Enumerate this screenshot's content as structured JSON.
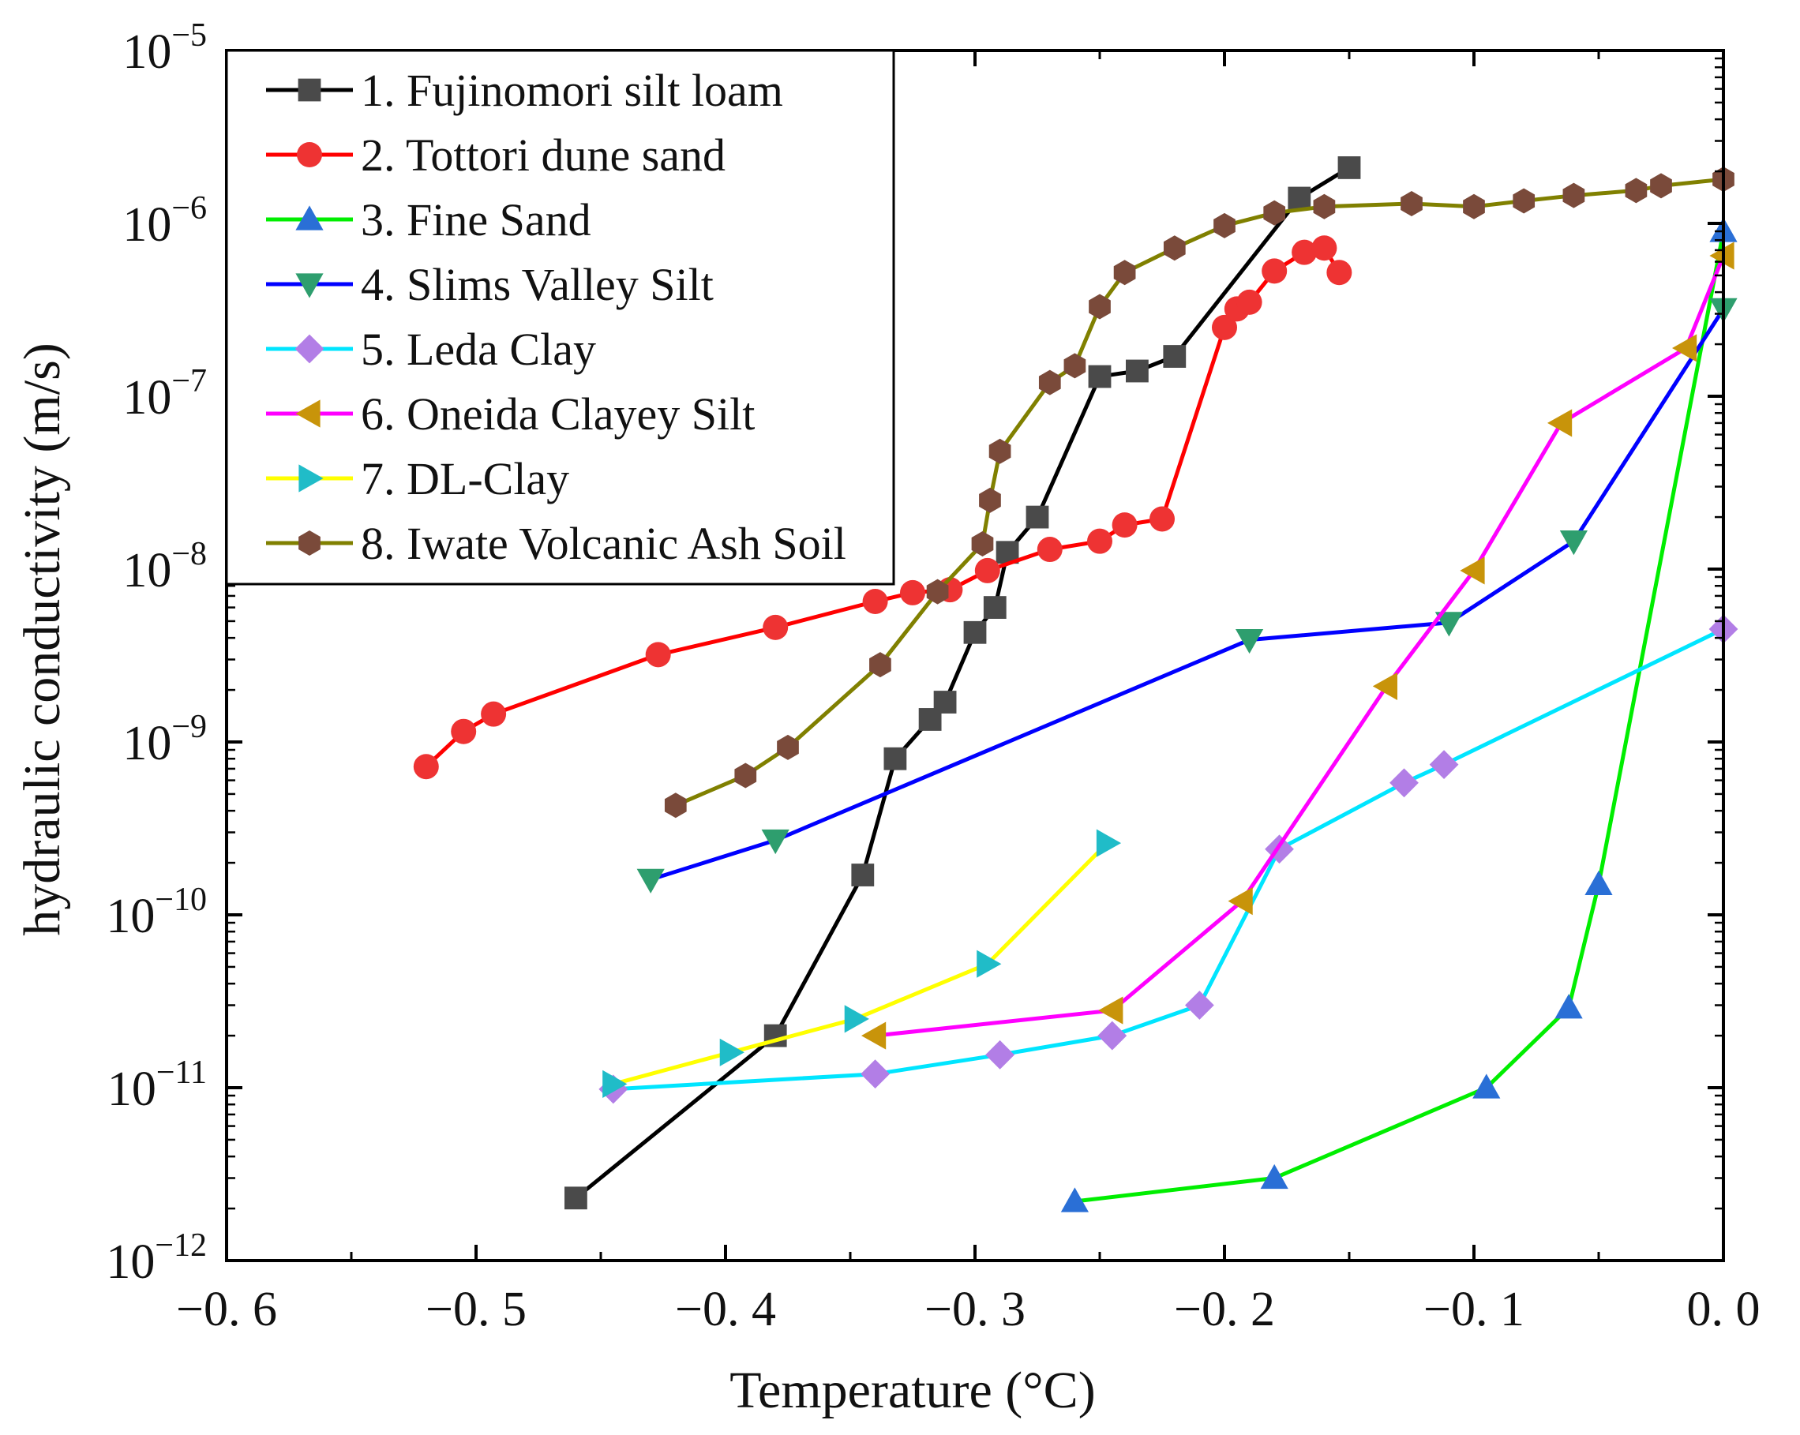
{
  "chart_data": {
    "type": "line",
    "title": "",
    "xlabel": "Temperature (°C)",
    "ylabel": "hydraulic conductivity (m/s)",
    "xlim": [
      -0.6,
      0.0
    ],
    "ylim_log10": [
      -12,
      -5
    ],
    "yscale": "log",
    "x_ticks": [
      -0.6,
      -0.5,
      -0.4,
      -0.3,
      -0.2,
      -0.1,
      0.0
    ],
    "x_tick_labels": [
      "−0. 6",
      "−0. 5",
      "−0. 4",
      "−0. 3",
      "−0. 2",
      "−0. 1",
      "0. 0"
    ],
    "y_tick_exponents": [
      -5,
      -6,
      -7,
      -8,
      -9,
      -10,
      -11,
      -12
    ],
    "y_tick_labels": [
      {
        "base": "10",
        "exp": "−5"
      },
      {
        "base": "10",
        "exp": "−6"
      },
      {
        "base": "10",
        "exp": "−7"
      },
      {
        "base": "10",
        "exp": "−8"
      },
      {
        "base": "10",
        "exp": "−9"
      },
      {
        "base": "10",
        "exp": "−10"
      },
      {
        "base": "10",
        "exp": "−11"
      },
      {
        "base": "10",
        "exp": "−12"
      }
    ],
    "legend_position": "top-left",
    "series": [
      {
        "name": "1. Fujinomori silt loam",
        "line_color": "#000000",
        "marker": "square",
        "marker_color": "#4a4a4a",
        "points": [
          [
            -0.46,
            2.3e-12
          ],
          [
            -0.38,
            2e-11
          ],
          [
            -0.345,
            1.7e-10
          ],
          [
            -0.332,
            8e-10
          ],
          [
            -0.318,
            1.35e-09
          ],
          [
            -0.312,
            1.7e-09
          ],
          [
            -0.3,
            4.3e-09
          ],
          [
            -0.292,
            6e-09
          ],
          [
            -0.287,
            1.25e-08
          ],
          [
            -0.275,
            2e-08
          ],
          [
            -0.25,
            1.3e-07
          ],
          [
            -0.235,
            1.4e-07
          ],
          [
            -0.22,
            1.7e-07
          ],
          [
            -0.17,
            1.4e-06
          ],
          [
            -0.15,
            2.1e-06
          ]
        ]
      },
      {
        "name": "2. Tottori dune sand",
        "line_color": "#ff0000",
        "marker": "circle",
        "marker_color": "#ee3333",
        "points": [
          [
            -0.52,
            7.2e-10
          ],
          [
            -0.505,
            1.15e-09
          ],
          [
            -0.493,
            1.45e-09
          ],
          [
            -0.427,
            3.2e-09
          ],
          [
            -0.38,
            4.6e-09
          ],
          [
            -0.34,
            6.5e-09
          ],
          [
            -0.325,
            7.3e-09
          ],
          [
            -0.31,
            7.6e-09
          ],
          [
            -0.295,
            9.8e-09
          ],
          [
            -0.27,
            1.3e-08
          ],
          [
            -0.25,
            1.45e-08
          ],
          [
            -0.24,
            1.8e-08
          ],
          [
            -0.225,
            1.95e-08
          ],
          [
            -0.2,
            2.5e-07
          ],
          [
            -0.195,
            3.2e-07
          ],
          [
            -0.19,
            3.5e-07
          ],
          [
            -0.18,
            5.3e-07
          ],
          [
            -0.168,
            6.8e-07
          ],
          [
            -0.16,
            7.2e-07
          ],
          [
            -0.154,
            5.2e-07
          ]
        ]
      },
      {
        "name": "3. Fine Sand",
        "line_color": "#00ee00",
        "marker": "triangle-up",
        "marker_color": "#2a6fd6",
        "points": [
          [
            -0.26,
            2.2e-12
          ],
          [
            -0.18,
            3e-12
          ],
          [
            -0.095,
            1e-11
          ],
          [
            -0.062,
            2.9e-11
          ],
          [
            -0.05,
            1.5e-10
          ],
          [
            0.0,
            9e-07
          ]
        ]
      },
      {
        "name": "4. Slims Valley Silt",
        "line_color": "#0000ff",
        "marker": "triangle-down",
        "marker_color": "#2e9e6e",
        "points": [
          [
            -0.43,
            1.6e-10
          ],
          [
            -0.38,
            2.7e-10
          ],
          [
            -0.19,
            3.9e-09
          ],
          [
            -0.11,
            4.9e-09
          ],
          [
            -0.06,
            1.45e-08
          ],
          [
            0.0,
            3.2e-07
          ]
        ]
      },
      {
        "name": "5. Leda Clay",
        "line_color": "#00e5ff",
        "marker": "diamond",
        "marker_color": "#b27ee6",
        "points": [
          [
            -0.445,
            9.8e-12
          ],
          [
            -0.34,
            1.2e-11
          ],
          [
            -0.29,
            1.55e-11
          ],
          [
            -0.245,
            2e-11
          ],
          [
            -0.21,
            3e-11
          ],
          [
            -0.178,
            2.4e-10
          ],
          [
            -0.128,
            5.8e-10
          ],
          [
            -0.112,
            7.4e-10
          ],
          [
            0.0,
            4.5e-09
          ]
        ]
      },
      {
        "name": "6. Oneida Clayey Silt",
        "line_color": "#ff00ff",
        "marker": "triangle-left",
        "marker_color": "#c8940a",
        "points": [
          [
            -0.34,
            2e-11
          ],
          [
            -0.245,
            2.8e-11
          ],
          [
            -0.193,
            1.2e-10
          ],
          [
            -0.135,
            2.1e-09
          ],
          [
            -0.1,
            9.8e-09
          ],
          [
            -0.065,
            7e-08
          ],
          [
            -0.015,
            1.9e-07
          ],
          [
            0.0,
            6.5e-07
          ]
        ]
      },
      {
        "name": "7. DL-Clay",
        "line_color": "#ffff00",
        "marker": "triangle-right",
        "marker_color": "#20bcc8",
        "points": [
          [
            -0.445,
            1.05e-11
          ],
          [
            -0.398,
            1.6e-11
          ],
          [
            -0.348,
            2.5e-11
          ],
          [
            -0.295,
            5.2e-11
          ],
          [
            -0.247,
            2.6e-10
          ]
        ]
      },
      {
        "name": "8. Iwate Volcanic Ash Soil",
        "line_color": "#808000",
        "marker": "hexagon",
        "marker_color": "#7a4a3a",
        "points": [
          [
            -0.42,
            4.3e-10
          ],
          [
            -0.392,
            6.4e-10
          ],
          [
            -0.375,
            9.3e-10
          ],
          [
            -0.338,
            2.8e-09
          ],
          [
            -0.315,
            7.4e-09
          ],
          [
            -0.297,
            1.4e-08
          ],
          [
            -0.294,
            2.5e-08
          ],
          [
            -0.29,
            4.8e-08
          ],
          [
            -0.27,
            1.2e-07
          ],
          [
            -0.26,
            1.5e-07
          ],
          [
            -0.25,
            3.3e-07
          ],
          [
            -0.24,
            5.2e-07
          ],
          [
            -0.22,
            7.2e-07
          ],
          [
            -0.2,
            9.7e-07
          ],
          [
            -0.18,
            1.15e-06
          ],
          [
            -0.16,
            1.25e-06
          ],
          [
            -0.125,
            1.3e-06
          ],
          [
            -0.1,
            1.25e-06
          ],
          [
            -0.08,
            1.35e-06
          ],
          [
            -0.06,
            1.45e-06
          ],
          [
            -0.035,
            1.55e-06
          ],
          [
            -0.025,
            1.65e-06
          ],
          [
            0.0,
            1.8e-06
          ]
        ]
      }
    ]
  }
}
